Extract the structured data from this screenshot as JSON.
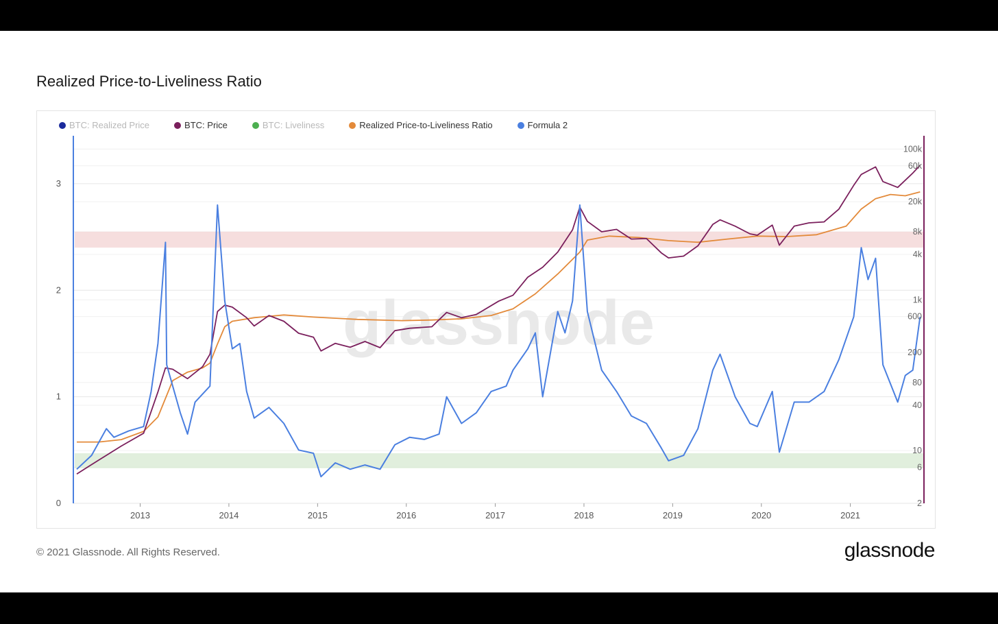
{
  "title": "Realized Price-to-Liveliness Ratio",
  "footer": "© 2021 Glassnode. All Rights Reserved.",
  "brand": "glassnode",
  "watermark": "glassnode",
  "legend": [
    {
      "label": "BTC: Realized Price",
      "color": "#1a2a9c",
      "active": false
    },
    {
      "label": "BTC: Price",
      "color": "#7a1f5c",
      "active": true
    },
    {
      "label": "BTC: Liveliness",
      "color": "#4caf50",
      "active": false
    },
    {
      "label": "Realized Price-to-Liveliness Ratio",
      "color": "#e38a3a",
      "active": true
    },
    {
      "label": "Formula 2",
      "color": "#4a7fe0",
      "active": true
    }
  ],
  "chart_data": {
    "type": "line",
    "x_ticks": [
      "2013",
      "2014",
      "2015",
      "2016",
      "2017",
      "2018",
      "2019",
      "2020",
      "2021"
    ],
    "x_range": [
      "2012-04-01",
      "2021-10-31"
    ],
    "y_left": {
      "ticks": [
        "0",
        "1",
        "2",
        "3"
      ],
      "range": [
        0,
        3.45
      ]
    },
    "y_right": {
      "scale": "log",
      "ticks": [
        "2",
        "6",
        "10",
        "40",
        "80",
        "200",
        "600",
        "1k",
        "4k",
        "8k",
        "20k",
        "60k",
        "100k"
      ],
      "range": [
        2,
        150000
      ]
    },
    "bands": [
      {
        "axis": "left",
        "from": 2.4,
        "to": 2.55,
        "color": "#f3d3d3"
      },
      {
        "axis": "left",
        "from": 0.33,
        "to": 0.47,
        "color": "#d7ead2"
      }
    ],
    "series": [
      {
        "name": "BTC: Price",
        "axis": "right",
        "color": "#7a1f5c",
        "points": [
          [
            "2012-04",
            4.9
          ],
          [
            "2012-07",
            7.5
          ],
          [
            "2012-10",
            11.5
          ],
          [
            "2013-01",
            17
          ],
          [
            "2013-03",
            60
          ],
          [
            "2013-04",
            125
          ],
          [
            "2013-05",
            120
          ],
          [
            "2013-07",
            90
          ],
          [
            "2013-09",
            130
          ],
          [
            "2013-10",
            190
          ],
          [
            "2013-11",
            700
          ],
          [
            "2013-12",
            850
          ],
          [
            "2014-01",
            800
          ],
          [
            "2014-03",
            580
          ],
          [
            "2014-04",
            450
          ],
          [
            "2014-06",
            620
          ],
          [
            "2014-08",
            520
          ],
          [
            "2014-10",
            360
          ],
          [
            "2014-12",
            320
          ],
          [
            "2015-01",
            210
          ],
          [
            "2015-03",
            265
          ],
          [
            "2015-05",
            235
          ],
          [
            "2015-07",
            280
          ],
          [
            "2015-09",
            232
          ],
          [
            "2015-11",
            390
          ],
          [
            "2016-01",
            420
          ],
          [
            "2016-04",
            440
          ],
          [
            "2016-06",
            680
          ],
          [
            "2016-08",
            580
          ],
          [
            "2016-10",
            640
          ],
          [
            "2017-01",
            960
          ],
          [
            "2017-03",
            1150
          ],
          [
            "2017-05",
            2000
          ],
          [
            "2017-07",
            2700
          ],
          [
            "2017-09",
            4300
          ],
          [
            "2017-11",
            8500
          ],
          [
            "2017-12",
            17000
          ],
          [
            "2018-01",
            11000
          ],
          [
            "2018-03",
            8000
          ],
          [
            "2018-05",
            8600
          ],
          [
            "2018-07",
            6400
          ],
          [
            "2018-09",
            6500
          ],
          [
            "2018-11",
            4200
          ],
          [
            "2018-12",
            3600
          ],
          [
            "2019-02",
            3800
          ],
          [
            "2019-04",
            5200
          ],
          [
            "2019-06",
            10000
          ],
          [
            "2019-07",
            11500
          ],
          [
            "2019-09",
            9500
          ],
          [
            "2019-11",
            7500
          ],
          [
            "2019-12",
            7200
          ],
          [
            "2020-02",
            9800
          ],
          [
            "2020-03",
            5300
          ],
          [
            "2020-05",
            9500
          ],
          [
            "2020-07",
            10500
          ],
          [
            "2020-09",
            10800
          ],
          [
            "2020-11",
            16000
          ],
          [
            "2021-01",
            33000
          ],
          [
            "2021-02",
            46000
          ],
          [
            "2021-04",
            58000
          ],
          [
            "2021-05",
            37000
          ],
          [
            "2021-07",
            31000
          ],
          [
            "2021-09",
            48000
          ],
          [
            "2021-10",
            61000
          ]
        ]
      },
      {
        "name": "Realized Price-to-Liveliness Ratio",
        "axis": "right",
        "color": "#e38a3a",
        "points": [
          [
            "2012-04",
            13
          ],
          [
            "2012-07",
            13
          ],
          [
            "2012-10",
            14
          ],
          [
            "2013-01",
            18
          ],
          [
            "2013-03",
            28
          ],
          [
            "2013-05",
            85
          ],
          [
            "2013-07",
            110
          ],
          [
            "2013-09",
            125
          ],
          [
            "2013-10",
            145
          ],
          [
            "2013-11",
            260
          ],
          [
            "2013-12",
            440
          ],
          [
            "2014-01",
            520
          ],
          [
            "2014-04",
            580
          ],
          [
            "2014-08",
            630
          ],
          [
            "2014-12",
            590
          ],
          [
            "2015-06",
            550
          ],
          [
            "2015-12",
            530
          ],
          [
            "2016-04",
            540
          ],
          [
            "2016-08",
            560
          ],
          [
            "2016-12",
            620
          ],
          [
            "2017-03",
            760
          ],
          [
            "2017-06",
            1200
          ],
          [
            "2017-09",
            2200
          ],
          [
            "2017-12",
            4300
          ],
          [
            "2018-01",
            6200
          ],
          [
            "2018-04",
            7000
          ],
          [
            "2018-08",
            6700
          ],
          [
            "2018-12",
            6100
          ],
          [
            "2019-04",
            5800
          ],
          [
            "2019-08",
            6400
          ],
          [
            "2019-12",
            7000
          ],
          [
            "2020-04",
            6900
          ],
          [
            "2020-08",
            7300
          ],
          [
            "2020-12",
            9500
          ],
          [
            "2021-02",
            16000
          ],
          [
            "2021-04",
            22000
          ],
          [
            "2021-06",
            25000
          ],
          [
            "2021-08",
            24000
          ],
          [
            "2021-10",
            27000
          ]
        ]
      },
      {
        "name": "Formula 2",
        "axis": "left",
        "color": "#4a7fe0",
        "points": [
          [
            "2012-04",
            0.32
          ],
          [
            "2012-06",
            0.45
          ],
          [
            "2012-08",
            0.7
          ],
          [
            "2012-09",
            0.62
          ],
          [
            "2012-11",
            0.68
          ],
          [
            "2013-01",
            0.72
          ],
          [
            "2013-02",
            1.05
          ],
          [
            "2013-03",
            1.5
          ],
          [
            "2013-04",
            2.45
          ],
          [
            "2013-04-20",
            1.3
          ],
          [
            "2013-06",
            0.85
          ],
          [
            "2013-07",
            0.65
          ],
          [
            "2013-08",
            0.95
          ],
          [
            "2013-10",
            1.1
          ],
          [
            "2013-11",
            2.8
          ],
          [
            "2013-12",
            1.9
          ],
          [
            "2014-01",
            1.45
          ],
          [
            "2014-02",
            1.5
          ],
          [
            "2014-03",
            1.05
          ],
          [
            "2014-04",
            0.8
          ],
          [
            "2014-06",
            0.9
          ],
          [
            "2014-08",
            0.75
          ],
          [
            "2014-10",
            0.5
          ],
          [
            "2014-12",
            0.47
          ],
          [
            "2015-01",
            0.25
          ],
          [
            "2015-03",
            0.38
          ],
          [
            "2015-05",
            0.32
          ],
          [
            "2015-07",
            0.36
          ],
          [
            "2015-09",
            0.32
          ],
          [
            "2015-11",
            0.55
          ],
          [
            "2016-01",
            0.62
          ],
          [
            "2016-03",
            0.6
          ],
          [
            "2016-05",
            0.65
          ],
          [
            "2016-06",
            1.0
          ],
          [
            "2016-08",
            0.75
          ],
          [
            "2016-10",
            0.85
          ],
          [
            "2016-12",
            1.05
          ],
          [
            "2017-02",
            1.1
          ],
          [
            "2017-03",
            1.25
          ],
          [
            "2017-05",
            1.45
          ],
          [
            "2017-06",
            1.6
          ],
          [
            "2017-07",
            1.0
          ],
          [
            "2017-09",
            1.8
          ],
          [
            "2017-10",
            1.6
          ],
          [
            "2017-11",
            1.9
          ],
          [
            "2017-12",
            2.8
          ],
          [
            "2018-01",
            1.8
          ],
          [
            "2018-03",
            1.25
          ],
          [
            "2018-05",
            1.05
          ],
          [
            "2018-07",
            0.82
          ],
          [
            "2018-09",
            0.75
          ],
          [
            "2018-11",
            0.52
          ],
          [
            "2018-12",
            0.4
          ],
          [
            "2019-02",
            0.45
          ],
          [
            "2019-04",
            0.7
          ],
          [
            "2019-06",
            1.25
          ],
          [
            "2019-07",
            1.4
          ],
          [
            "2019-09",
            1.0
          ],
          [
            "2019-11",
            0.75
          ],
          [
            "2019-12",
            0.72
          ],
          [
            "2020-02",
            1.05
          ],
          [
            "2020-03",
            0.48
          ],
          [
            "2020-05",
            0.95
          ],
          [
            "2020-07",
            0.95
          ],
          [
            "2020-09",
            1.05
          ],
          [
            "2020-11",
            1.35
          ],
          [
            "2021-01",
            1.75
          ],
          [
            "2021-02",
            2.4
          ],
          [
            "2021-03",
            2.1
          ],
          [
            "2021-04",
            2.3
          ],
          [
            "2021-05",
            1.3
          ],
          [
            "2021-07",
            0.95
          ],
          [
            "2021-08",
            1.2
          ],
          [
            "2021-09",
            1.25
          ],
          [
            "2021-10",
            1.75
          ]
        ]
      }
    ]
  }
}
